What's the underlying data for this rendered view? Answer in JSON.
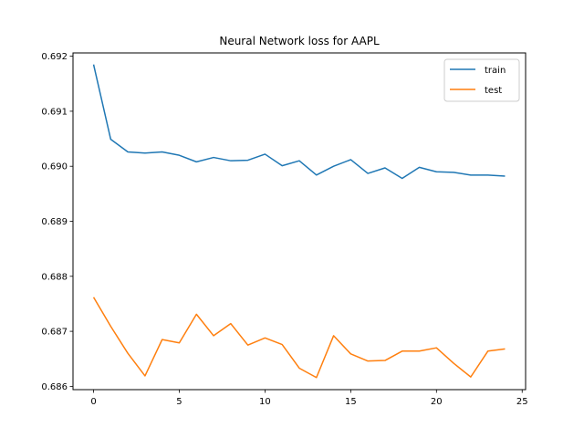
{
  "chart_data": {
    "type": "line",
    "title": "Neural Network loss for AAPL",
    "xlabel": "",
    "ylabel": "",
    "xlim": [
      -1.2,
      25.2
    ],
    "ylim": [
      0.68594,
      0.69206
    ],
    "xticks": [
      0,
      5,
      10,
      15,
      20,
      25
    ],
    "yticks": [
      0.686,
      0.687,
      0.688,
      0.689,
      0.69,
      0.691,
      0.692
    ],
    "ytick_labels": [
      "0.686",
      "0.687",
      "0.688",
      "0.689",
      "0.690",
      "0.691",
      "0.692"
    ],
    "grid": false,
    "legend_position": "top-right",
    "x": [
      0,
      1,
      2,
      3,
      4,
      5,
      6,
      7,
      8,
      9,
      10,
      11,
      12,
      13,
      14,
      15,
      16,
      17,
      18,
      19,
      20,
      21,
      22,
      23,
      24
    ],
    "series": [
      {
        "name": "train",
        "color": "#1f77b4",
        "values": [
          0.69185,
          0.69049,
          0.69026,
          0.69024,
          0.69026,
          0.6902,
          0.69008,
          0.69016,
          0.6901,
          0.69011,
          0.69022,
          0.69001,
          0.6901,
          0.68984,
          0.69,
          0.69012,
          0.68987,
          0.68997,
          0.68978,
          0.68998,
          0.6899,
          0.68989,
          0.68984,
          0.68984,
          0.68982
        ]
      },
      {
        "name": "test",
        "color": "#ff7f0e",
        "values": [
          0.68762,
          0.68709,
          0.6866,
          0.68619,
          0.68685,
          0.68679,
          0.68731,
          0.68692,
          0.68714,
          0.68675,
          0.68688,
          0.68676,
          0.68633,
          0.68616,
          0.68692,
          0.68659,
          0.68646,
          0.68647,
          0.68664,
          0.68664,
          0.6867,
          0.68642,
          0.68617,
          0.68664,
          0.68668
        ]
      }
    ]
  }
}
